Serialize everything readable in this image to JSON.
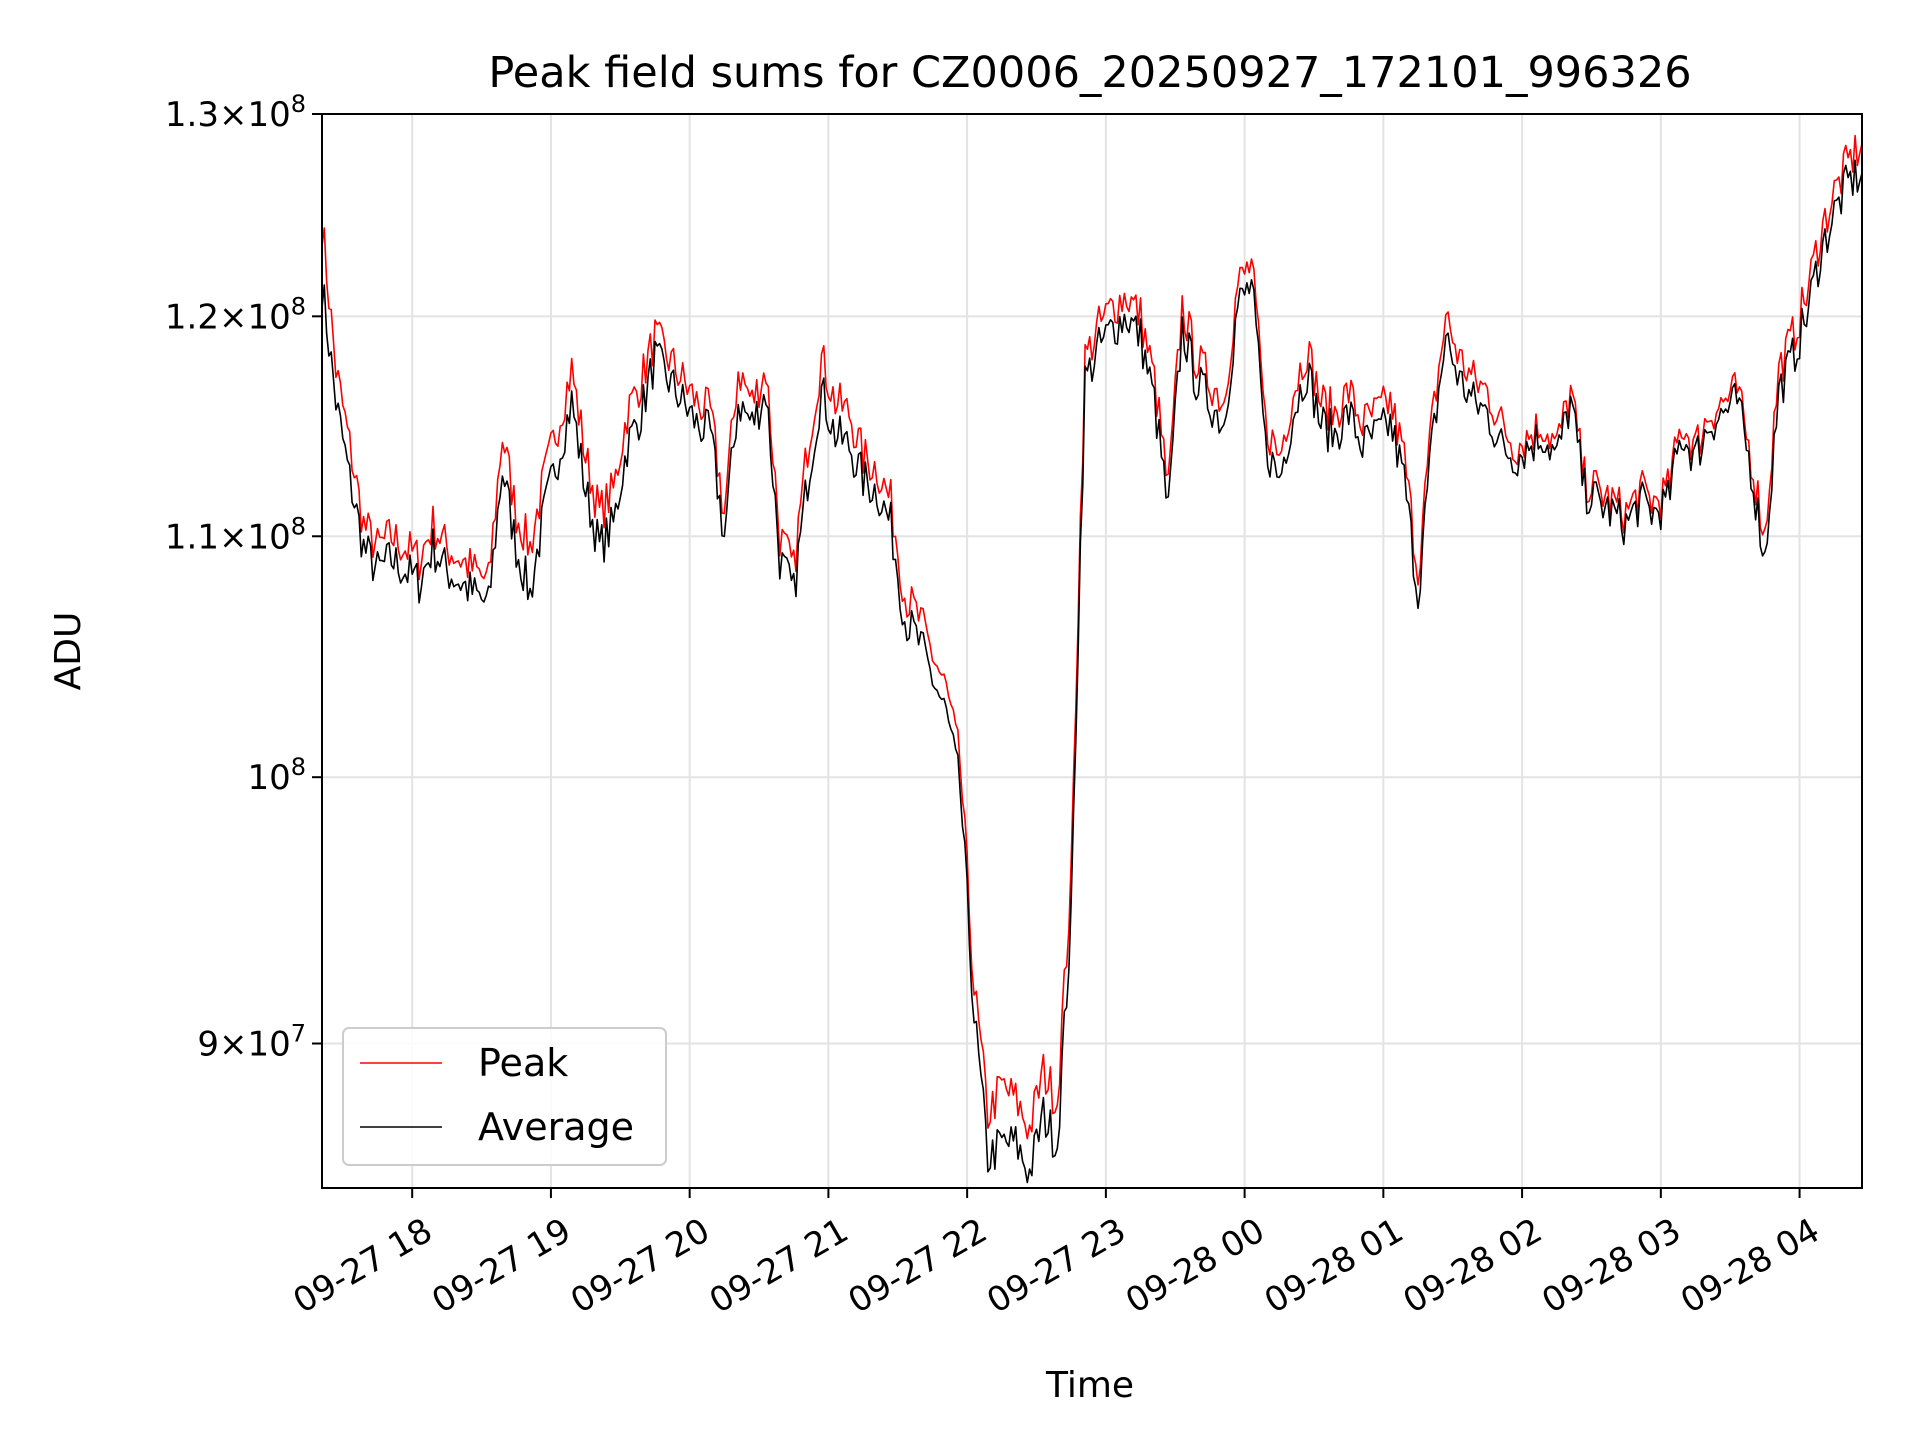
{
  "chart_data": {
    "type": "line",
    "title": "Peak field sums for CZ0006_20250927_172101_996326",
    "xlabel": "Time",
    "ylabel": "ADU",
    "yscale": "log",
    "ylim": [
      85000000,
      130000000
    ],
    "xlim_hours": [
      17.35,
      28.45
    ],
    "grid": true,
    "legend_location": "lower-left",
    "x_ticks": [
      {
        "hour": 18,
        "label": "09-27 18"
      },
      {
        "hour": 19,
        "label": "09-27 19"
      },
      {
        "hour": 20,
        "label": "09-27 20"
      },
      {
        "hour": 21,
        "label": "09-27 21"
      },
      {
        "hour": 22,
        "label": "09-27 22"
      },
      {
        "hour": 23,
        "label": "09-27 23"
      },
      {
        "hour": 24,
        "label": "09-28 00"
      },
      {
        "hour": 25,
        "label": "09-28 01"
      },
      {
        "hour": 26,
        "label": "09-28 02"
      },
      {
        "hour": 27,
        "label": "09-28 03"
      },
      {
        "hour": 28,
        "label": "09-28 04"
      }
    ],
    "y_ticks": [
      {
        "value": 90000000,
        "mantissa": "9",
        "exponent": "7"
      },
      {
        "value": 100000000,
        "mantissa": "",
        "exponent": "8"
      },
      {
        "value": 110000000,
        "mantissa": "1.1",
        "exponent": "8"
      },
      {
        "value": 120000000,
        "mantissa": "1.2",
        "exponent": "8"
      },
      {
        "value": 130000000,
        "mantissa": "1.3",
        "exponent": "8"
      }
    ],
    "series": [
      {
        "name": "Peak",
        "color": "#ff0000",
        "x_hours": [
          17.35,
          17.45,
          17.55,
          17.65,
          17.75,
          17.85,
          17.95,
          18.05,
          18.15,
          18.25,
          18.35,
          18.45,
          18.55,
          18.65,
          18.75,
          18.85,
          18.95,
          19.05,
          19.15,
          19.25,
          19.35,
          19.45,
          19.55,
          19.65,
          19.75,
          19.85,
          19.95,
          20.05,
          20.15,
          20.25,
          20.35,
          20.45,
          20.55,
          20.65,
          20.75,
          20.85,
          20.95,
          21.05,
          21.15,
          21.25,
          21.35,
          21.45,
          21.55,
          21.65,
          21.75,
          21.85,
          21.95,
          22.05,
          22.15,
          22.25,
          22.35,
          22.45,
          22.55,
          22.65,
          22.75,
          22.85,
          22.95,
          23.05,
          23.15,
          23.25,
          23.35,
          23.45,
          23.55,
          23.65,
          23.75,
          23.85,
          23.95,
          24.05,
          24.15,
          24.25,
          24.35,
          24.45,
          24.55,
          24.65,
          24.75,
          24.85,
          24.95,
          25.05,
          25.15,
          25.25,
          25.35,
          25.45,
          25.55,
          25.65,
          25.75,
          25.85,
          25.95,
          26.05,
          26.15,
          26.25,
          26.35,
          26.45,
          26.55,
          26.65,
          26.75,
          26.85,
          26.95,
          27.05,
          27.15,
          27.25,
          27.35,
          27.45,
          27.55,
          27.65,
          27.75,
          27.85,
          27.95,
          28.05,
          28.15,
          28.25,
          28.35,
          28.45
        ],
        "values": [
          124500000,
          117500000,
          114000000,
          110500000,
          109500000,
          110000000,
          109500000,
          109000000,
          110500000,
          109500000,
          109000000,
          108500000,
          108000000,
          114500000,
          111000000,
          109500000,
          112500000,
          115000000,
          117500000,
          113500000,
          111000000,
          112000000,
          115500000,
          117000000,
          119000000,
          118000000,
          117000000,
          116000000,
          115500000,
          111000000,
          117500000,
          116000000,
          117500000,
          110000000,
          108500000,
          114000000,
          118000000,
          116000000,
          115500000,
          113500000,
          113000000,
          111500000,
          107500000,
          106500000,
          105000000,
          103500000,
          100500000,
          92000000,
          87500000,
          88500000,
          88000000,
          87000000,
          89000000,
          88000000,
          96000000,
          118000000,
          119500000,
          120500000,
          121000000,
          120000000,
          117000000,
          112000000,
          120500000,
          118000000,
          117000000,
          116000000,
          121500000,
          122500000,
          115000000,
          113500000,
          116500000,
          118500000,
          116000000,
          115500000,
          116500000,
          115000000,
          115500000,
          116000000,
          113500000,
          108500000,
          115000000,
          120000000,
          118000000,
          117000000,
          116500000,
          115000000,
          114000000,
          114500000,
          115000000,
          114000000,
          116500000,
          112500000,
          112000000,
          111500000,
          111000000,
          112000000,
          111500000,
          112000000,
          115000000,
          114000000,
          115500000,
          116000000,
          116500000,
          113500000,
          110000000,
          117500000,
          119000000,
          121000000,
          124000000,
          126000000,
          127500000,
          128500000
        ]
      },
      {
        "name": "Average",
        "color": "#000000",
        "x_hours": [
          17.35,
          17.45,
          17.55,
          17.65,
          17.75,
          17.85,
          17.95,
          18.05,
          18.15,
          18.25,
          18.35,
          18.45,
          18.55,
          18.65,
          18.75,
          18.85,
          18.95,
          19.05,
          19.15,
          19.25,
          19.35,
          19.45,
          19.55,
          19.65,
          19.75,
          19.85,
          19.95,
          20.05,
          20.15,
          20.25,
          20.35,
          20.45,
          20.55,
          20.65,
          20.75,
          20.85,
          20.95,
          21.05,
          21.15,
          21.25,
          21.35,
          21.45,
          21.55,
          21.65,
          21.75,
          21.85,
          21.95,
          22.05,
          22.15,
          22.25,
          22.35,
          22.45,
          22.55,
          22.65,
          22.75,
          22.85,
          22.95,
          23.05,
          23.15,
          23.25,
          23.35,
          23.45,
          23.55,
          23.65,
          23.75,
          23.85,
          23.95,
          24.05,
          24.15,
          24.25,
          24.35,
          24.45,
          24.55,
          24.65,
          24.75,
          24.85,
          24.95,
          25.05,
          25.15,
          25.25,
          25.35,
          25.45,
          25.55,
          25.65,
          25.75,
          25.85,
          25.95,
          26.05,
          26.15,
          26.25,
          26.35,
          26.45,
          26.55,
          26.65,
          26.75,
          26.85,
          26.95,
          27.05,
          27.15,
          27.25,
          27.35,
          27.45,
          27.55,
          27.65,
          27.75,
          27.85,
          27.95,
          28.05,
          28.15,
          28.25,
          28.35,
          28.45
        ],
        "values": [
          121500000,
          116000000,
          112500000,
          109500000,
          108500000,
          109000000,
          108500000,
          108000000,
          109500000,
          108500000,
          108000000,
          107500000,
          107000000,
          113000000,
          109500000,
          107500000,
          111000000,
          113500000,
          116000000,
          112000000,
          109500000,
          110500000,
          114000000,
          115500000,
          118000000,
          117000000,
          116000000,
          115000000,
          114500000,
          110000000,
          116000000,
          115000000,
          116500000,
          109000000,
          107500000,
          112500000,
          116500000,
          114500000,
          114000000,
          112500000,
          112000000,
          110500000,
          106500000,
          105500000,
          104000000,
          102500000,
          99500000,
          91000000,
          86000000,
          86500000,
          86500000,
          85500000,
          87500000,
          86500000,
          94500000,
          117000000,
          118500000,
          119500000,
          120000000,
          119000000,
          116000000,
          111000000,
          119500000,
          117000000,
          116000000,
          115000000,
          120500000,
          121500000,
          114000000,
          112500000,
          115500000,
          117500000,
          115000000,
          114500000,
          115500000,
          114000000,
          114500000,
          115000000,
          112500000,
          107500000,
          114000000,
          119000000,
          117000000,
          116000000,
          115500000,
          114000000,
          113500000,
          114000000,
          114500000,
          113500000,
          116000000,
          112000000,
          111500000,
          111000000,
          110500000,
          111500000,
          111000000,
          111500000,
          114500000,
          113500000,
          115000000,
          115500000,
          116000000,
          113000000,
          109000000,
          116500000,
          118000000,
          120000000,
          123000000,
          125000000,
          126500000,
          127000000
        ]
      }
    ]
  }
}
